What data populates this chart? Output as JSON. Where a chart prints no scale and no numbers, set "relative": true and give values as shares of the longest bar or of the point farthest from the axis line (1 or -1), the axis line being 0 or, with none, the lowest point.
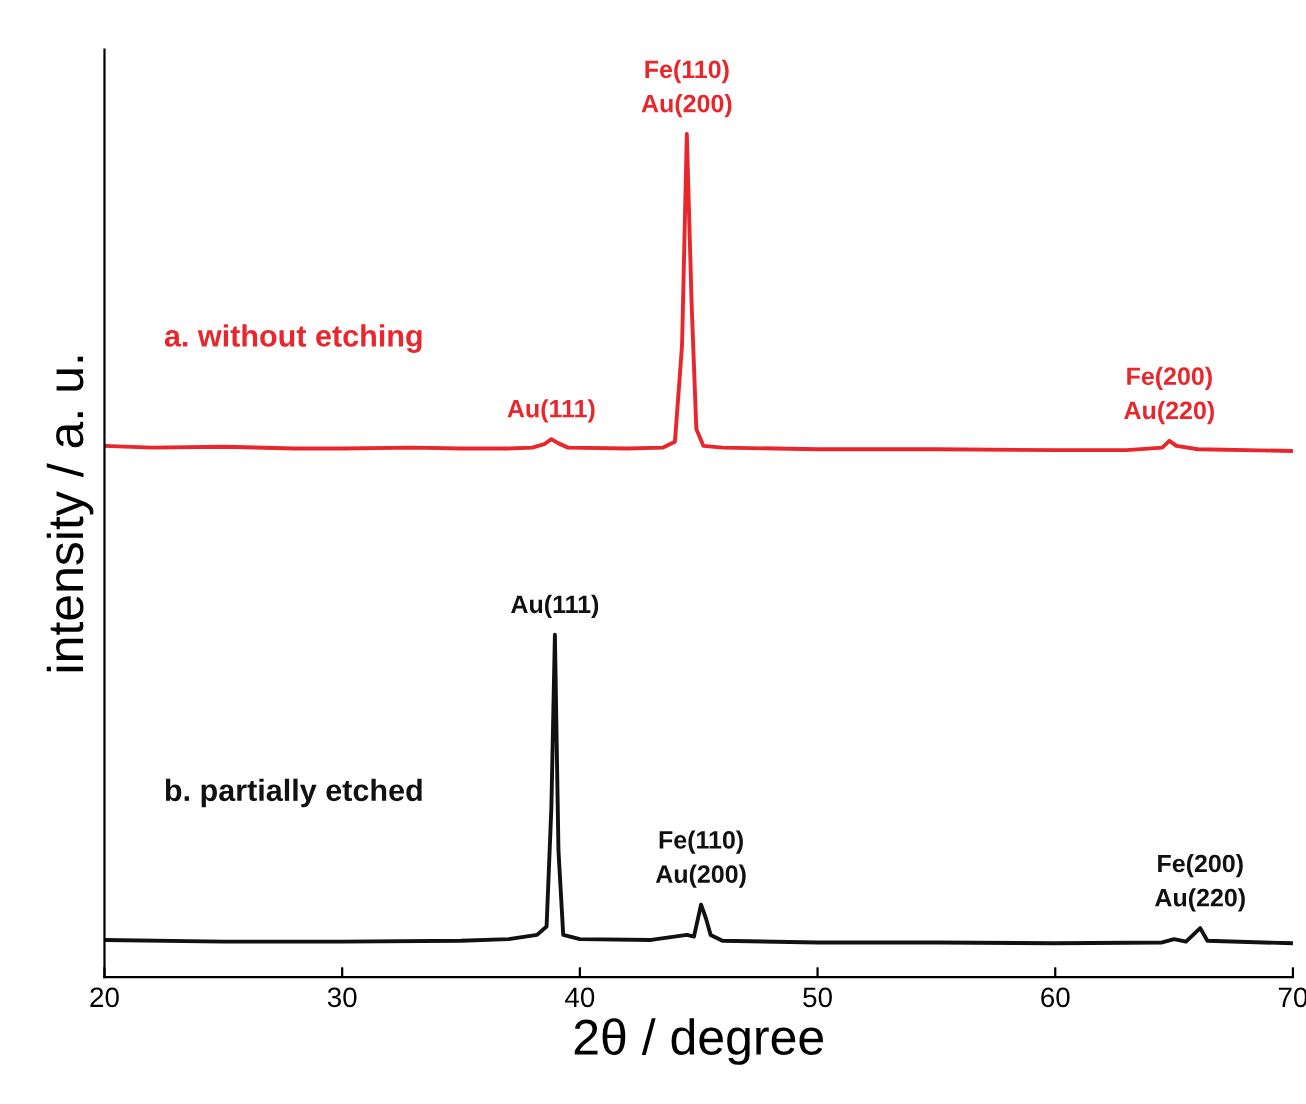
{
  "chart_data": {
    "type": "line",
    "relative": true,
    "xlabel": "2θ / degree",
    "ylabel": "intensity / a. u.",
    "xlim": [
      20,
      70
    ],
    "xticks": [
      20,
      30,
      40,
      50,
      60,
      70
    ],
    "tick_labels": "x",
    "grid": false,
    "legend": false,
    "marker": "none",
    "line_style": "solid",
    "series": [
      {
        "name": "a. without etching",
        "color": "#e8262b",
        "x": [
          20,
          22,
          25,
          28,
          30,
          33,
          35,
          37,
          38,
          38.5,
          38.8,
          39.1,
          39.5,
          42,
          43.5,
          44.0,
          44.3,
          44.5,
          44.7,
          44.9,
          45.2,
          46,
          50,
          55,
          60,
          63,
          64.5,
          64.8,
          65.1,
          66,
          70
        ],
        "values": [
          0.63,
          0.628,
          0.629,
          0.627,
          0.627,
          0.628,
          0.627,
          0.627,
          0.628,
          0.632,
          0.638,
          0.633,
          0.628,
          0.627,
          0.628,
          0.635,
          0.75,
          1.0,
          0.8,
          0.65,
          0.63,
          0.628,
          0.626,
          0.626,
          0.625,
          0.625,
          0.628,
          0.636,
          0.63,
          0.626,
          0.624
        ]
      },
      {
        "name": "b. partially etched",
        "color": "#111111",
        "x": [
          20,
          25,
          30,
          35,
          37,
          38.2,
          38.6,
          38.8,
          38.95,
          39.1,
          39.3,
          40,
          43,
          44.5,
          44.8,
          45.1,
          45.3,
          45.5,
          46,
          50,
          55,
          60,
          64.5,
          65,
          65.5,
          66.1,
          66.4,
          70
        ],
        "values": [
          0.044,
          0.042,
          0.042,
          0.043,
          0.045,
          0.05,
          0.06,
          0.2,
          0.406,
          0.15,
          0.05,
          0.045,
          0.044,
          0.05,
          0.048,
          0.086,
          0.07,
          0.05,
          0.043,
          0.041,
          0.041,
          0.04,
          0.041,
          0.045,
          0.042,
          0.058,
          0.043,
          0.04
        ]
      }
    ],
    "annotations": [
      {
        "text": "Au(111)",
        "x": 38.8,
        "y": 0.638
      },
      {
        "text": "Fe(110)\nAu(200)",
        "x": 44.5,
        "y": 1.0
      },
      {
        "text": "Fe(200)\nAu(220)",
        "x": 64.8,
        "y": 0.636
      },
      {
        "text": "Au(111)",
        "x": 38.95,
        "y": 0.406
      },
      {
        "text": "Fe(110)\nAu(200)",
        "x": 45.1,
        "y": 0.086
      },
      {
        "text": "Fe(200)\nAu(220)",
        "x": 66.1,
        "y": 0.058
      }
    ]
  }
}
